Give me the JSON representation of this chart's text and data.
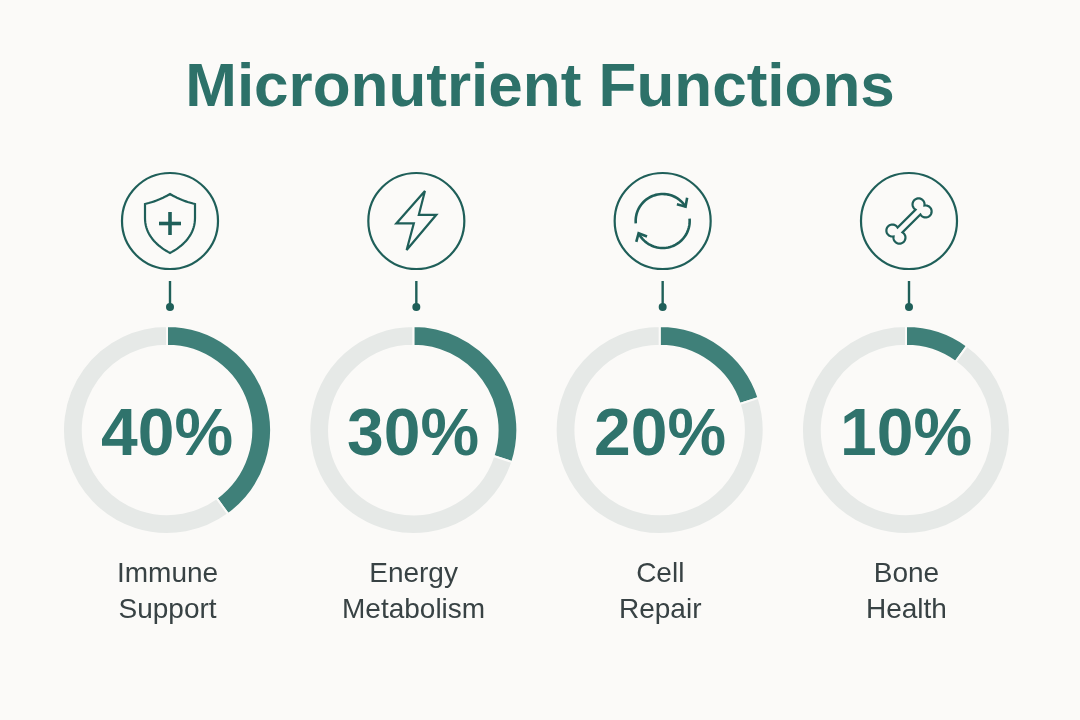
{
  "chart_data": [
    {
      "type": "other",
      "title": "Micronutrient Functions"
    },
    {
      "type": "donut",
      "title": "Immune Support",
      "categories": [
        null,
        null
      ],
      "values": [
        40,
        60
      ],
      "colors": [
        "#3f8079",
        "#e6e9e7"
      ],
      "annotations": [
        "40%"
      ]
    },
    {
      "type": "donut",
      "title": "Energy Metabolism",
      "categories": [
        null,
        null
      ],
      "values": [
        30,
        70
      ],
      "colors": [
        "#3f8079",
        "#e6e9e7"
      ],
      "annotations": [
        "30%"
      ]
    },
    {
      "type": "donut",
      "title": "Cell Repair",
      "categories": [
        null,
        null
      ],
      "values": [
        20,
        80
      ],
      "colors": [
        "#3f8079",
        "#e6e9e7"
      ],
      "annotations": [
        "20%"
      ]
    },
    {
      "type": "donut",
      "title": "Bone Health",
      "categories": [
        null,
        null
      ],
      "values": [
        10,
        90
      ],
      "colors": [
        "#3f8079",
        "#e6e9e7"
      ],
      "annotations": [
        "10%"
      ]
    }
  ]
}
